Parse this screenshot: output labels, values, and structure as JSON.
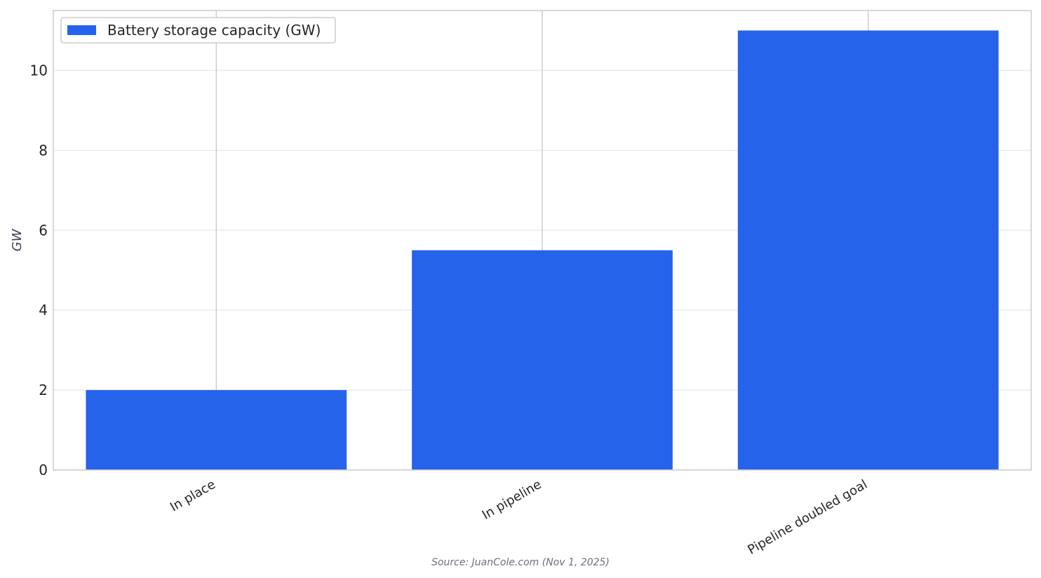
{
  "chart_data": {
    "type": "bar",
    "categories": [
      "In place",
      "In pipeline",
      "Pipeline doubled goal"
    ],
    "series": [
      {
        "name": "Battery storage capacity (GW)",
        "values": [
          2,
          5.5,
          11
        ]
      }
    ],
    "xlabel": "",
    "ylabel": "GW",
    "ylim": [
      0,
      11.5
    ],
    "yticks": [
      0,
      2,
      4,
      6,
      8,
      10
    ],
    "grid": true,
    "legend_position": "top-left",
    "source": "Source: JuanCole.com (Nov 1, 2025)",
    "colors": {
      "bar": "#2563EB",
      "grid": "#EBEBEB",
      "axis_spine": "#CCCCCC",
      "vertical_gridline": "#CCCCCC"
    }
  }
}
